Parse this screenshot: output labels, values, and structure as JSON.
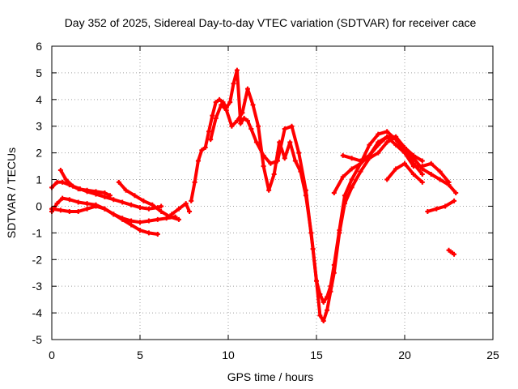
{
  "chart_data": {
    "type": "scatter",
    "title": "Day 352 of 2025, Sidereal Day-to-day VTEC variation (SDTVAR) for receiver cace",
    "xlabel": "GPS time / hours",
    "ylabel": "SDTVAR / TECUs",
    "xlim": [
      0,
      25
    ],
    "ylim": [
      -5,
      6
    ],
    "x_ticks": [
      0,
      5,
      10,
      15,
      20,
      25
    ],
    "y_ticks": [
      -5,
      -4,
      -3,
      -2,
      -1,
      0,
      1,
      2,
      3,
      4,
      5,
      6
    ],
    "grid": true,
    "legend": "none",
    "marker": "plus",
    "color": "#ff0000",
    "series": [
      {
        "x": [
          0.0,
          0.3,
          0.6,
          1.0,
          1.5,
          2.0,
          2.5,
          3.0,
          3.3
        ],
        "y": [
          0.7,
          0.9,
          0.9,
          0.8,
          0.65,
          0.6,
          0.55,
          0.5,
          0.4
        ]
      },
      {
        "x": [
          0.5,
          0.8,
          1.2,
          1.6,
          2.0,
          2.5,
          3.0,
          3.5,
          4.0,
          4.5,
          5.0,
          5.5,
          6.0,
          6.2
        ],
        "y": [
          1.35,
          1.0,
          0.75,
          0.65,
          0.55,
          0.45,
          0.35,
          0.25,
          0.15,
          0.05,
          -0.05,
          -0.1,
          -0.05,
          0.0
        ]
      },
      {
        "x": [
          0.0,
          0.3,
          0.6,
          1.0,
          1.5,
          2.0,
          2.5,
          3.0,
          3.5,
          4.0,
          4.5,
          5.0,
          5.5,
          6.0
        ],
        "y": [
          -0.2,
          0.1,
          0.3,
          0.25,
          0.15,
          0.1,
          0.05,
          -0.1,
          -0.3,
          -0.5,
          -0.7,
          -0.9,
          -1.0,
          -1.05
        ]
      },
      {
        "x": [
          0.0,
          0.5,
          1.0,
          1.5,
          2.0,
          2.5,
          3.0,
          3.5,
          4.0,
          4.5,
          5.0,
          5.5,
          6.0,
          6.5,
          7.0
        ],
        "y": [
          -0.1,
          -0.15,
          -0.2,
          -0.2,
          -0.1,
          0.0,
          -0.1,
          -0.3,
          -0.45,
          -0.55,
          -0.6,
          -0.55,
          -0.5,
          -0.45,
          -0.4
        ]
      },
      {
        "x": [
          3.8,
          4.2,
          4.7,
          5.2,
          5.7,
          6.2,
          6.7,
          7.2
        ],
        "y": [
          0.9,
          0.6,
          0.4,
          0.2,
          0.05,
          -0.2,
          -0.4,
          -0.5
        ]
      },
      {
        "x": [
          6.8,
          7.2,
          7.6,
          7.8
        ],
        "y": [
          -0.3,
          -0.1,
          0.1,
          -0.2
        ]
      },
      {
        "x": [
          7.9,
          8.1,
          8.3,
          8.5,
          8.7,
          8.9,
          9.1,
          9.3,
          9.5,
          9.7,
          9.9,
          10.1,
          10.3,
          10.5,
          10.7,
          10.9,
          11.1,
          11.3,
          11.6,
          12.0,
          12.4,
          12.8,
          13.2,
          13.6,
          14.0,
          14.4,
          14.8,
          15.0,
          15.2,
          15.4,
          15.6,
          15.8,
          16.0,
          16.3,
          16.6,
          17.0,
          17.5,
          18.0,
          18.5,
          19.0,
          19.5,
          20.0,
          20.5,
          21.0,
          21.5,
          22.0,
          22.5,
          22.9
        ],
        "y": [
          0.2,
          0.9,
          1.7,
          2.1,
          2.2,
          2.8,
          3.4,
          3.9,
          4.0,
          3.9,
          3.7,
          3.9,
          4.6,
          5.1,
          3.1,
          3.3,
          3.2,
          2.9,
          2.4,
          1.9,
          1.6,
          1.7,
          2.9,
          3.0,
          2.0,
          0.6,
          -1.6,
          -2.8,
          -3.3,
          -3.6,
          -3.4,
          -3.0,
          -2.2,
          -0.9,
          0.4,
          1.0,
          1.6,
          2.3,
          2.7,
          2.8,
          2.5,
          2.1,
          1.8,
          1.4,
          1.2,
          1.0,
          0.8,
          0.5
        ]
      },
      {
        "x": [
          9.0,
          9.3,
          9.6,
          9.9,
          10.2,
          10.5,
          10.8,
          11.1,
          11.4,
          11.7,
          12.0,
          12.3,
          12.6,
          12.9,
          13.2,
          13.5,
          13.8,
          14.1,
          14.4,
          14.7,
          15.0,
          15.2,
          15.4,
          15.6,
          15.8,
          16.0,
          16.3,
          16.6,
          17.0,
          17.5,
          18.0,
          18.5,
          19.0,
          19.5,
          20.0,
          20.5,
          21.0
        ],
        "y": [
          2.5,
          3.3,
          3.8,
          3.6,
          3.0,
          3.2,
          3.5,
          4.4,
          3.8,
          3.0,
          1.5,
          0.6,
          1.2,
          2.4,
          1.8,
          2.4,
          1.7,
          1.3,
          0.4,
          -1.0,
          -2.8,
          -4.1,
          -4.3,
          -3.9,
          -3.2,
          -2.5,
          -1.0,
          0.1,
          0.7,
          1.3,
          1.8,
          2.0,
          2.4,
          2.6,
          2.1,
          1.6,
          1.2
        ]
      },
      {
        "x": [
          16.5,
          17.0,
          17.5,
          18.0,
          18.5,
          19.0,
          19.5,
          20.0,
          20.5,
          21.0,
          21.5,
          22.0,
          22.5
        ],
        "y": [
          1.9,
          1.8,
          1.7,
          1.9,
          2.3,
          2.6,
          2.3,
          2.0,
          1.5,
          1.5,
          1.6,
          1.3,
          0.9
        ]
      },
      {
        "x": [
          16.0,
          16.5,
          17.0,
          17.5,
          18.0,
          18.5,
          19.0,
          19.5,
          20.0,
          20.5,
          21.0
        ],
        "y": [
          0.5,
          1.1,
          1.4,
          1.6,
          1.9,
          2.4,
          2.6,
          2.6,
          2.2,
          1.9,
          1.7
        ]
      },
      {
        "x": [
          19.0,
          19.5,
          20.0,
          20.5,
          21.0
        ],
        "y": [
          1.0,
          1.4,
          1.6,
          1.2,
          0.9
        ]
      },
      {
        "x": [
          21.3,
          21.8,
          22.3,
          22.8
        ],
        "y": [
          -0.2,
          -0.1,
          0.0,
          0.2
        ]
      },
      {
        "x": [
          22.5,
          22.6,
          22.7,
          22.8
        ],
        "y": [
          -1.65,
          -1.7,
          -1.75,
          -1.8
        ]
      }
    ]
  }
}
